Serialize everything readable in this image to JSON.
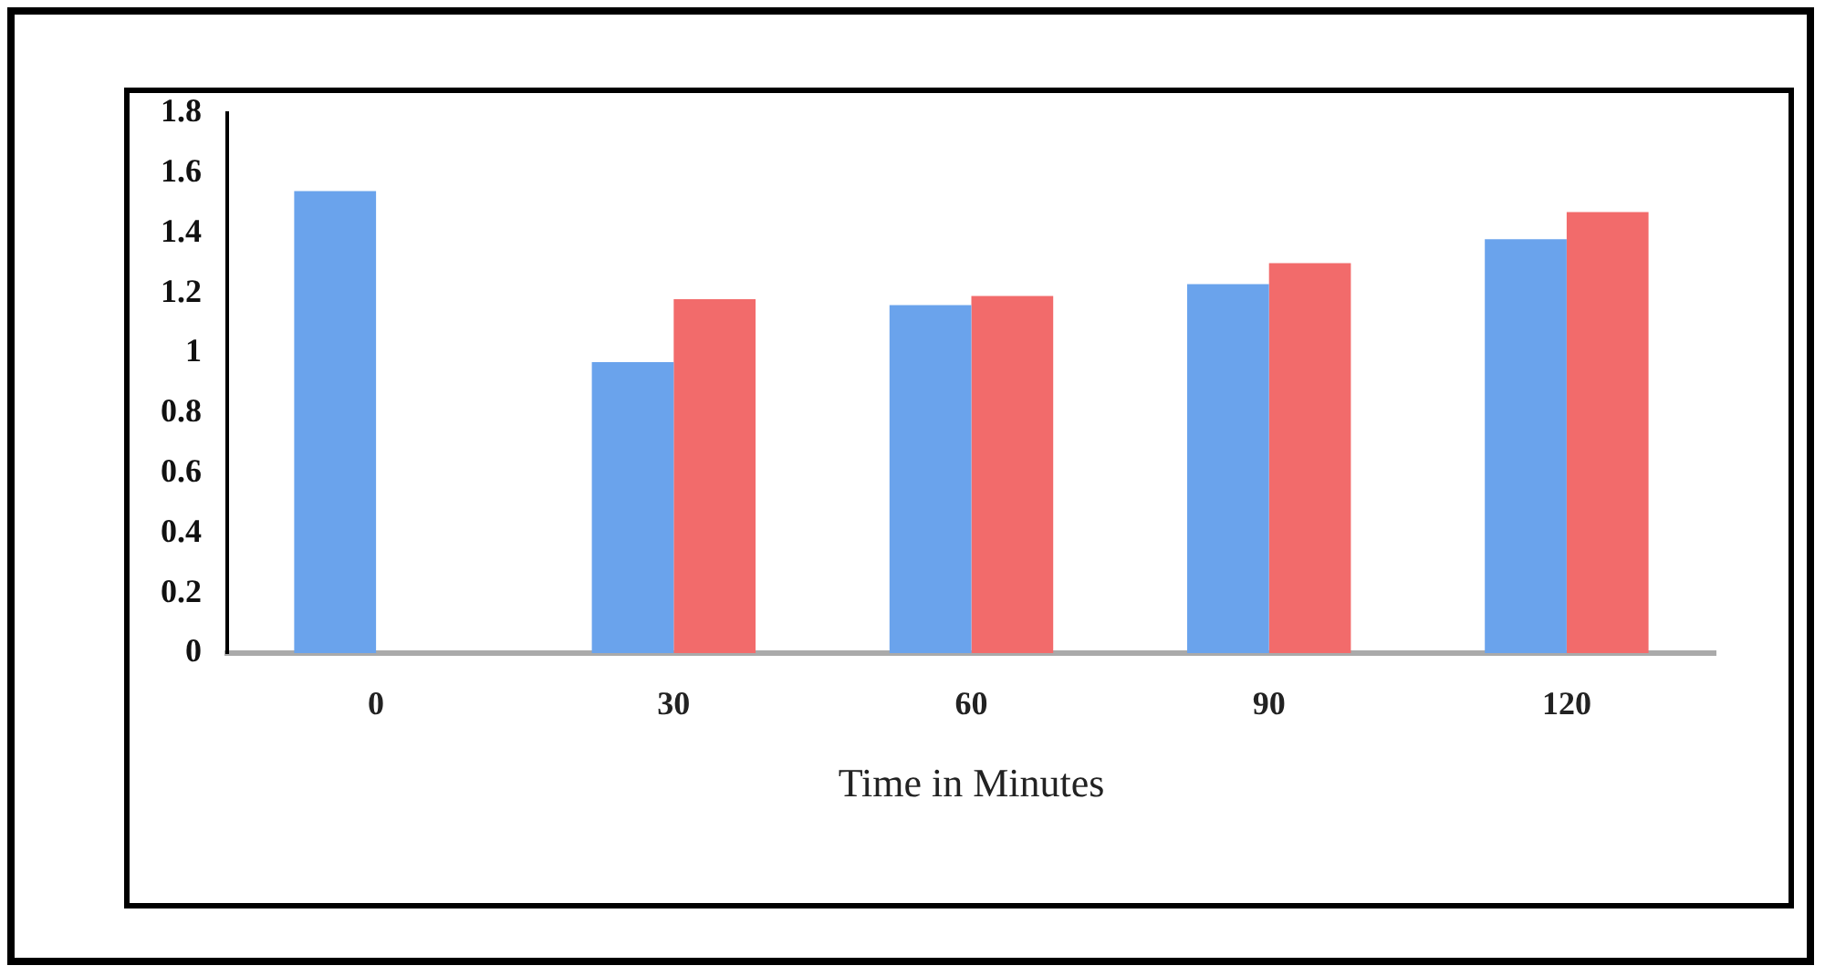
{
  "chart_data": {
    "type": "bar",
    "xlabel": "Time in Minutes",
    "categories": [
      "0",
      "30",
      "60",
      "90",
      "120"
    ],
    "series": [
      {
        "color": "#6aa3ec",
        "values": [
          1.54,
          0.97,
          1.16,
          1.23,
          1.38
        ]
      },
      {
        "color": "#f26b6b",
        "values": [
          null,
          1.18,
          1.19,
          1.3,
          1.47
        ]
      }
    ],
    "ylim": [
      0,
      1.8
    ],
    "yticks": [
      0,
      0.2,
      0.4,
      0.6,
      0.8,
      1,
      1.2,
      1.4,
      1.6,
      1.8
    ],
    "grid": false,
    "legend": false
  }
}
